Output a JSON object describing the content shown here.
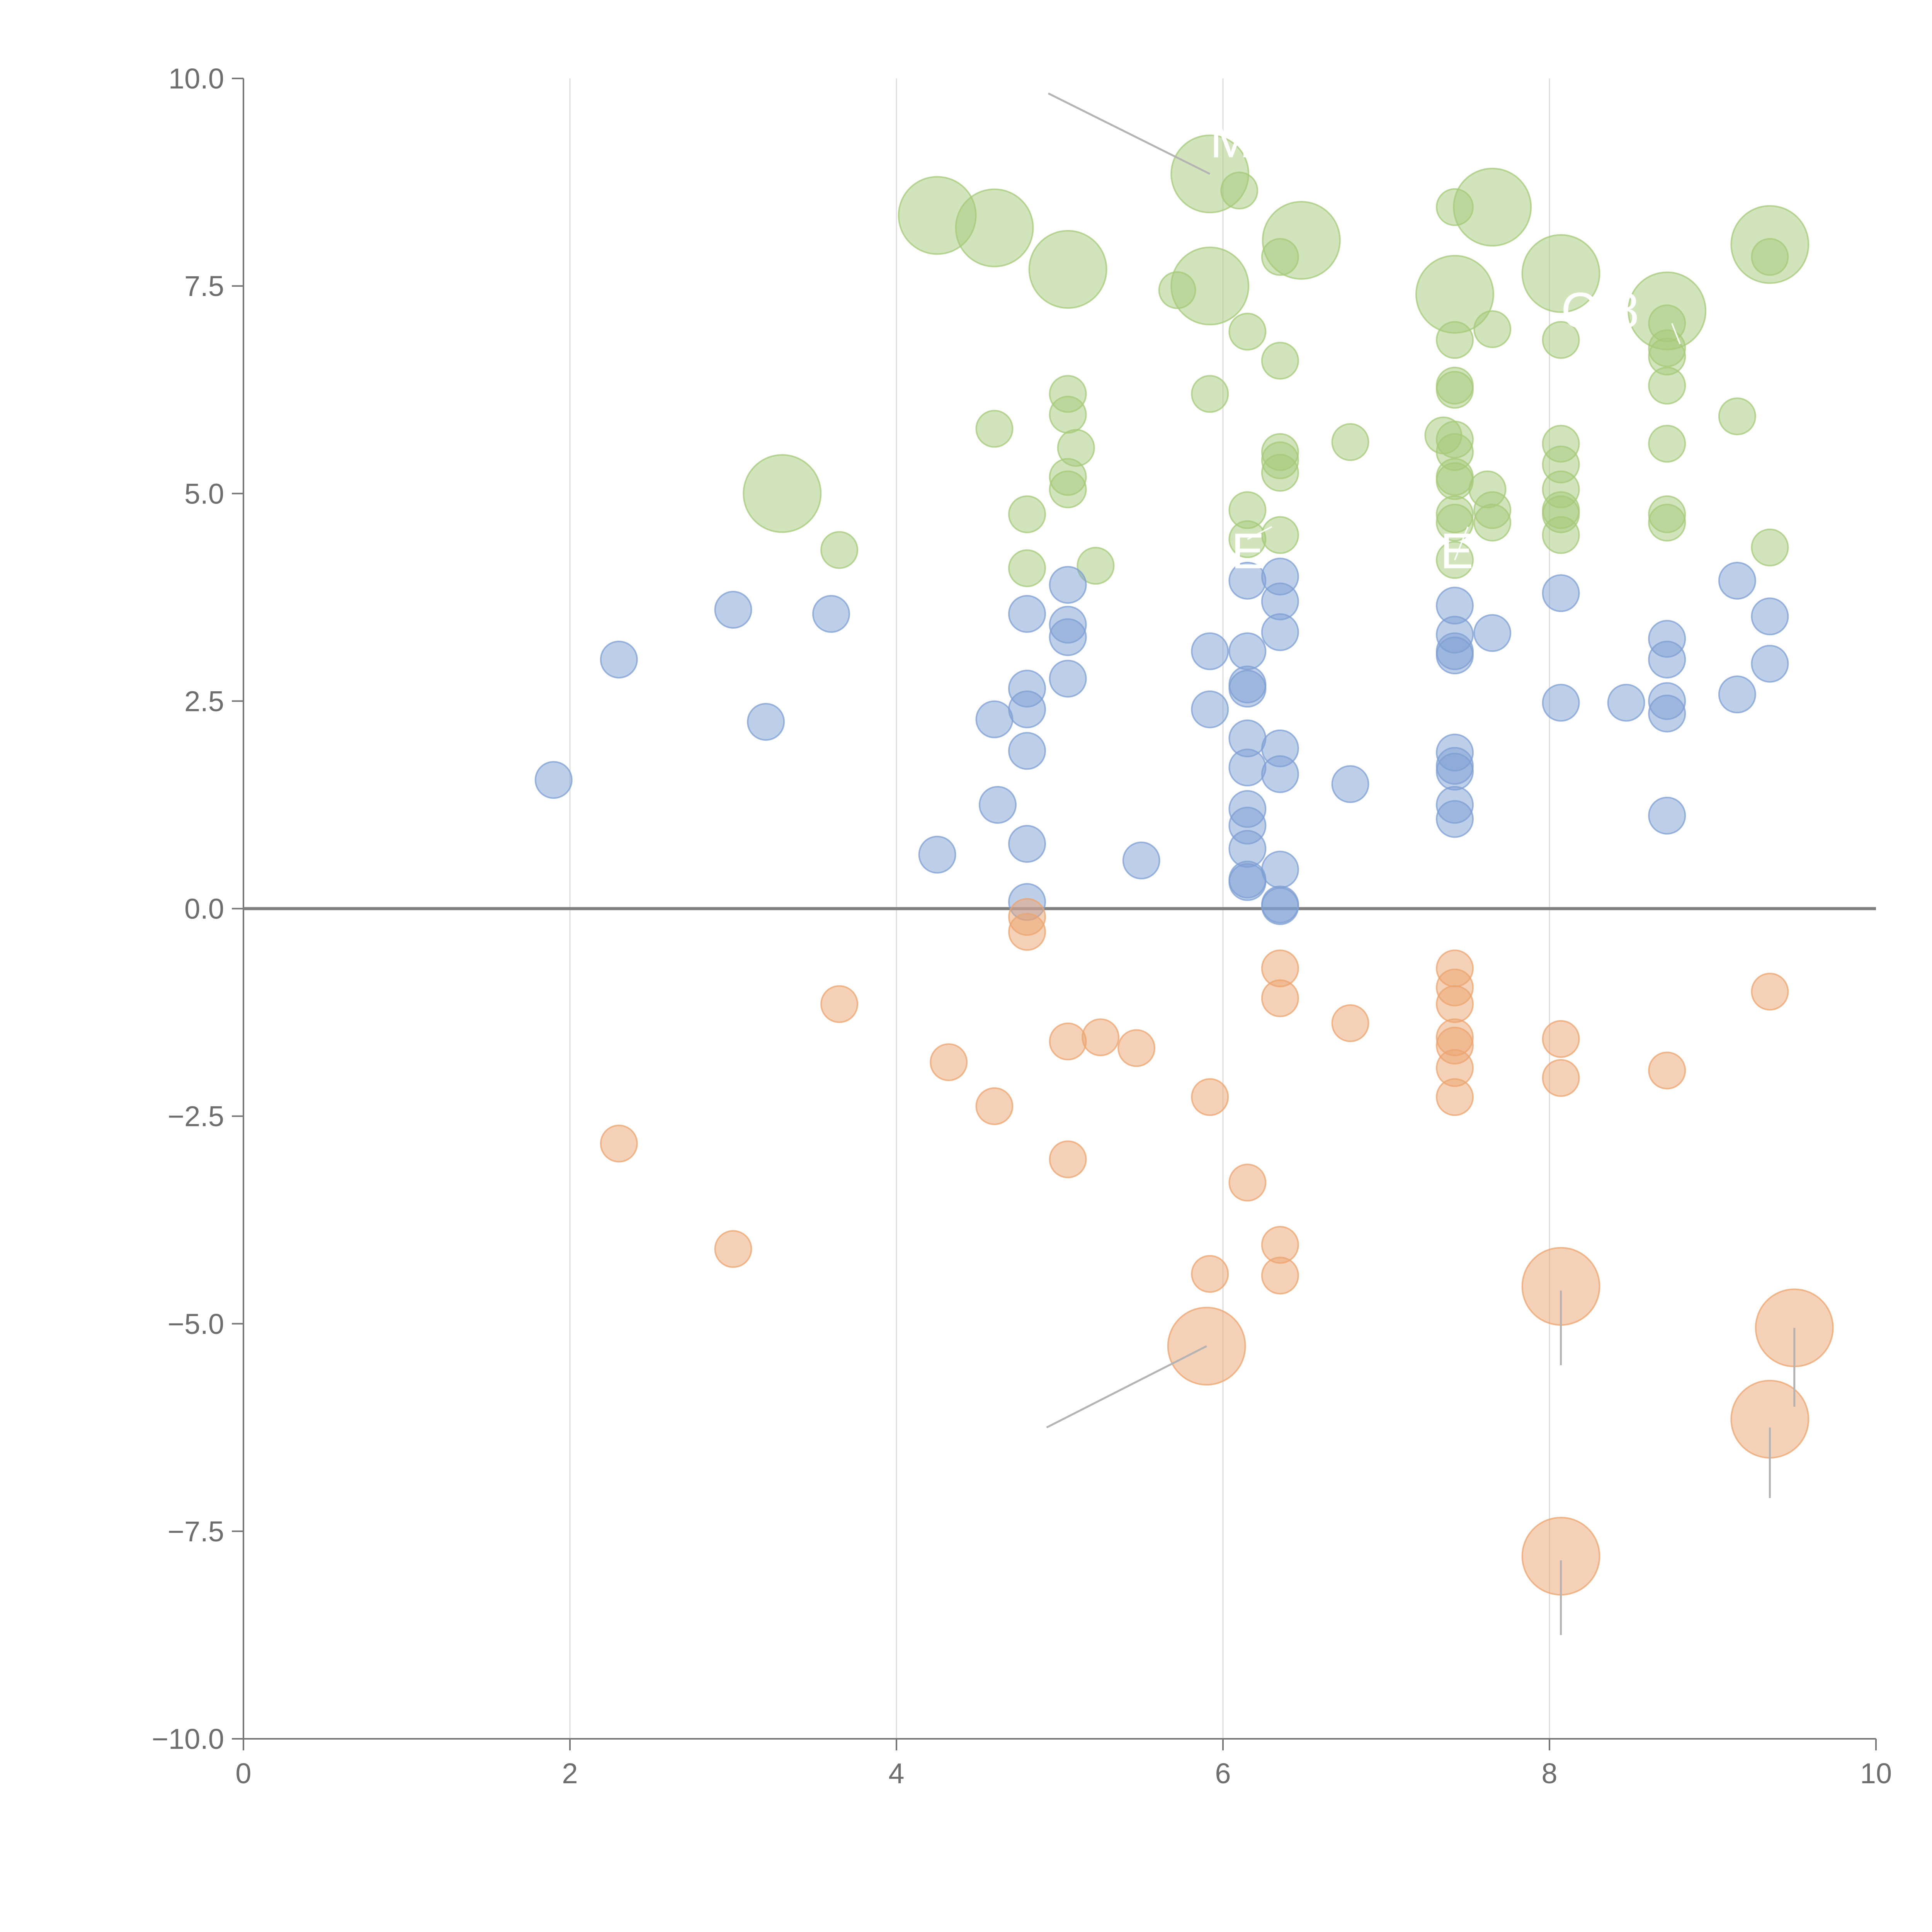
{
  "chart_data": {
    "type": "scatter",
    "title": "",
    "xlabel": "",
    "ylabel": "",
    "xlim": [
      0,
      10
    ],
    "ylim": [
      -10,
      10
    ],
    "x_ticks": [
      "0",
      "2",
      "4",
      "6",
      "8",
      "10"
    ],
    "x_tick_values": [
      0,
      2,
      4,
      6,
      8,
      10
    ],
    "y_ticks": [
      "10.0",
      "7.5",
      "5.0",
      "2.5",
      "0.0",
      "−2.5",
      "−5.0",
      "−7.5",
      "−10.0"
    ],
    "y_tick_values": [
      10,
      7.5,
      5,
      2.5,
      0,
      -2.5,
      -5,
      -7.5,
      -10
    ],
    "grid": "vertical",
    "reference_line_y": 0,
    "legend": "none",
    "colors": {
      "green": "#a6c97a",
      "blue": "#7d9fd3",
      "orange": "#eba46f",
      "axis": "#777777",
      "grid": "#dddddd",
      "zero": "#808080",
      "leader": "#b4b4b4"
    },
    "series": [
      {
        "name": "upper",
        "color": "green",
        "points": [
          [
            4.25,
            8.35,
            2
          ],
          [
            4.6,
            8.2,
            2
          ],
          [
            5.05,
            7.7,
            2
          ],
          [
            5.92,
            8.85,
            2
          ],
          [
            5.92,
            7.5,
            2
          ],
          [
            6.48,
            8.05,
            2
          ],
          [
            7.65,
            8.45,
            2
          ],
          [
            7.42,
            7.4,
            2
          ],
          [
            8.07,
            7.65,
            2
          ],
          [
            8.72,
            7.2,
            2
          ],
          [
            9.35,
            8.0,
            2
          ],
          [
            3.3,
            5.0,
            2
          ],
          [
            6.1,
            8.65,
            1
          ],
          [
            5.72,
            7.45,
            1
          ],
          [
            6.15,
            6.95,
            1
          ],
          [
            6.35,
            7.85,
            1
          ],
          [
            6.35,
            6.6,
            1
          ],
          [
            5.92,
            6.2,
            1
          ],
          [
            5.05,
            6.2,
            1
          ],
          [
            5.05,
            5.95,
            1
          ],
          [
            5.1,
            5.55,
            1
          ],
          [
            4.6,
            5.78,
            1
          ],
          [
            5.05,
            5.2,
            1
          ],
          [
            5.05,
            5.05,
            1
          ],
          [
            4.8,
            4.75,
            1
          ],
          [
            4.8,
            4.1,
            1
          ],
          [
            5.22,
            4.13,
            1
          ],
          [
            3.65,
            4.32,
            1
          ],
          [
            6.15,
            4.8,
            1
          ],
          [
            6.15,
            4.45,
            1
          ],
          [
            6.35,
            5.5,
            1
          ],
          [
            6.35,
            5.25,
            1
          ],
          [
            6.35,
            5.4,
            1
          ],
          [
            6.78,
            5.62,
            1
          ],
          [
            6.35,
            4.5,
            1
          ],
          [
            7.42,
            8.45,
            1
          ],
          [
            7.42,
            6.85,
            1
          ],
          [
            7.65,
            6.98,
            1
          ],
          [
            7.42,
            6.3,
            1
          ],
          [
            7.42,
            6.25,
            1
          ],
          [
            7.35,
            5.7,
            1
          ],
          [
            7.42,
            5.65,
            1
          ],
          [
            7.42,
            5.5,
            1
          ],
          [
            7.42,
            5.2,
            1
          ],
          [
            7.42,
            5.15,
            1
          ],
          [
            7.62,
            5.05,
            1
          ],
          [
            7.42,
            4.75,
            1
          ],
          [
            7.42,
            4.65,
            1
          ],
          [
            7.65,
            4.8,
            1
          ],
          [
            7.65,
            4.65,
            1
          ],
          [
            7.42,
            4.2,
            1
          ],
          [
            8.07,
            6.85,
            1
          ],
          [
            8.07,
            5.6,
            1
          ],
          [
            8.07,
            5.35,
            1
          ],
          [
            8.07,
            5.05,
            1
          ],
          [
            8.07,
            4.8,
            1
          ],
          [
            8.07,
            4.75,
            1
          ],
          [
            8.07,
            4.5,
            1
          ],
          [
            8.72,
            7.05,
            1
          ],
          [
            8.72,
            6.75,
            1
          ],
          [
            8.72,
            6.65,
            1
          ],
          [
            8.72,
            6.3,
            1
          ],
          [
            8.72,
            5.6,
            1
          ],
          [
            8.72,
            4.75,
            1
          ],
          [
            8.72,
            4.65,
            1
          ],
          [
            9.15,
            5.93,
            1
          ],
          [
            9.35,
            7.85,
            1
          ],
          [
            9.35,
            4.35,
            1
          ]
        ]
      },
      {
        "name": "middle",
        "color": "blue",
        "points": [
          [
            1.9,
            1.55,
            1
          ],
          [
            2.3,
            3.0,
            1
          ],
          [
            3.0,
            3.6,
            1
          ],
          [
            3.2,
            2.25,
            1
          ],
          [
            3.6,
            3.55,
            1
          ],
          [
            4.25,
            0.65,
            1
          ],
          [
            4.6,
            2.28,
            1
          ],
          [
            4.62,
            1.25,
            1
          ],
          [
            4.8,
            3.55,
            1
          ],
          [
            4.8,
            2.65,
            1
          ],
          [
            4.8,
            2.4,
            1
          ],
          [
            4.8,
            1.9,
            1
          ],
          [
            4.8,
            0.78,
            1
          ],
          [
            4.8,
            0.08,
            1
          ],
          [
            5.05,
            3.9,
            1
          ],
          [
            5.05,
            3.42,
            1
          ],
          [
            5.05,
            3.27,
            1
          ],
          [
            5.05,
            2.77,
            1
          ],
          [
            5.5,
            0.58,
            1
          ],
          [
            5.92,
            3.1,
            1
          ],
          [
            5.92,
            2.4,
            1
          ],
          [
            6.15,
            3.95,
            1
          ],
          [
            6.15,
            3.1,
            1
          ],
          [
            6.15,
            2.7,
            1
          ],
          [
            6.15,
            2.65,
            1
          ],
          [
            6.15,
            2.05,
            1
          ],
          [
            6.15,
            1.7,
            1
          ],
          [
            6.15,
            1.2,
            1
          ],
          [
            6.15,
            1.0,
            1
          ],
          [
            6.15,
            0.72,
            1
          ],
          [
            6.15,
            0.35,
            1
          ],
          [
            6.15,
            0.32,
            1
          ],
          [
            6.35,
            4.0,
            1
          ],
          [
            6.35,
            3.7,
            1
          ],
          [
            6.35,
            3.33,
            1
          ],
          [
            6.35,
            1.93,
            1
          ],
          [
            6.35,
            1.62,
            1
          ],
          [
            6.35,
            0.47,
            1
          ],
          [
            6.35,
            0.05,
            1
          ],
          [
            6.35,
            0.03,
            1
          ],
          [
            6.78,
            1.5,
            1
          ],
          [
            7.42,
            3.65,
            1
          ],
          [
            7.42,
            3.3,
            1
          ],
          [
            7.42,
            3.1,
            1
          ],
          [
            7.42,
            3.05,
            1
          ],
          [
            7.42,
            1.88,
            1
          ],
          [
            7.42,
            1.72,
            1
          ],
          [
            7.42,
            1.65,
            1
          ],
          [
            7.42,
            1.25,
            1
          ],
          [
            7.42,
            1.08,
            1
          ],
          [
            7.65,
            3.32,
            1
          ],
          [
            8.07,
            3.8,
            1
          ],
          [
            8.07,
            2.48,
            1
          ],
          [
            8.47,
            2.48,
            1
          ],
          [
            8.72,
            3.25,
            1
          ],
          [
            8.72,
            3.0,
            1
          ],
          [
            8.72,
            2.5,
            1
          ],
          [
            8.72,
            2.35,
            1
          ],
          [
            8.72,
            1.12,
            1
          ],
          [
            9.15,
            3.95,
            1
          ],
          [
            9.15,
            2.58,
            1
          ],
          [
            9.35,
            3.52,
            1
          ],
          [
            9.35,
            2.95,
            1
          ]
        ]
      },
      {
        "name": "lower",
        "color": "orange",
        "points": [
          [
            2.3,
            -2.83,
            1
          ],
          [
            3.0,
            -4.1,
            1
          ],
          [
            3.65,
            -1.15,
            1
          ],
          [
            4.32,
            -1.85,
            1
          ],
          [
            4.6,
            -2.38,
            1
          ],
          [
            4.8,
            -0.1,
            1
          ],
          [
            4.8,
            -0.28,
            1
          ],
          [
            5.05,
            -1.6,
            1
          ],
          [
            5.05,
            -3.02,
            1
          ],
          [
            5.25,
            -1.55,
            1
          ],
          [
            5.47,
            -1.68,
            1
          ],
          [
            5.92,
            -2.27,
            1
          ],
          [
            5.92,
            -4.4,
            1
          ],
          [
            6.15,
            -3.3,
            1
          ],
          [
            6.35,
            -0.72,
            1
          ],
          [
            6.35,
            -1.08,
            1
          ],
          [
            6.35,
            -4.05,
            1
          ],
          [
            6.35,
            -4.42,
            1
          ],
          [
            6.78,
            -1.38,
            1
          ],
          [
            7.42,
            -0.72,
            1
          ],
          [
            7.42,
            -0.95,
            1
          ],
          [
            7.42,
            -1.15,
            1
          ],
          [
            7.42,
            -1.55,
            1
          ],
          [
            7.42,
            -1.65,
            1
          ],
          [
            7.42,
            -1.92,
            1
          ],
          [
            7.42,
            -2.27,
            1
          ],
          [
            8.07,
            -1.57,
            1
          ],
          [
            8.07,
            -2.04,
            1
          ],
          [
            8.72,
            -1.95,
            1
          ],
          [
            9.35,
            -1.0,
            1
          ],
          [
            5.9,
            -5.27,
            2
          ],
          [
            8.07,
            -4.55,
            2
          ],
          [
            8.07,
            -7.8,
            2
          ],
          [
            9.35,
            -6.15,
            2
          ],
          [
            9.5,
            -5.05,
            2
          ]
        ]
      }
    ],
    "annotations": [
      {
        "text": "M",
        "x": 5.92,
        "y": 8.85,
        "label_x": 5.92,
        "label_y": 9.05,
        "leader_from": [
          4.93,
          9.82
        ],
        "leader_to": [
          5.92,
          8.85
        ],
        "leader_style": "gray"
      },
      {
        "text": "C 8",
        "x": 8.72,
        "y": 7.2,
        "label_x": 8.07,
        "label_y": 7.0,
        "leader_from": [
          8.75,
          7.05
        ],
        "leader_to": [
          8.8,
          6.8
        ],
        "leader_style": "light"
      },
      {
        "text": "E",
        "x": 6.15,
        "y": 4.45,
        "label_x": 6.05,
        "label_y": 4.1,
        "leader_from": [
          6.15,
          4.45
        ],
        "leader_to": [
          6.3,
          4.6
        ],
        "leader_style": "light"
      },
      {
        "text": "E",
        "x": 7.42,
        "y": 4.2,
        "label_x": 7.33,
        "label_y": 4.1,
        "leader_from": [
          7.42,
          4.2
        ],
        "leader_to": [
          7.5,
          4.6
        ],
        "leader_style": "light"
      }
    ],
    "leader_lines": [
      {
        "from": [
          4.92,
          -6.25
        ],
        "to": [
          5.9,
          -5.27
        ]
      },
      {
        "from": [
          8.07,
          -4.6
        ],
        "to": [
          8.07,
          -5.5
        ]
      },
      {
        "from": [
          8.07,
          -7.85
        ],
        "to": [
          8.07,
          -8.75
        ]
      },
      {
        "from": [
          9.35,
          -6.25
        ],
        "to": [
          9.35,
          -7.1
        ]
      },
      {
        "from": [
          9.5,
          -5.05
        ],
        "to": [
          9.5,
          -6.0
        ]
      }
    ]
  }
}
